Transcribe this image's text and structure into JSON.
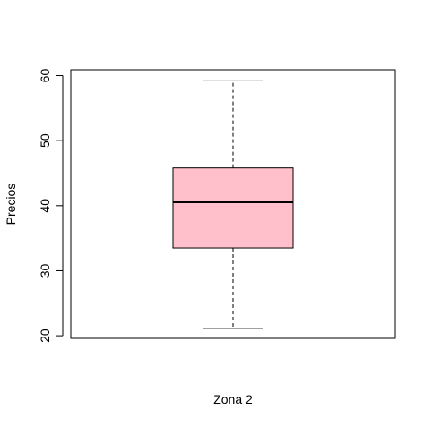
{
  "chart_data": {
    "type": "box",
    "categories": [
      "Zona 2"
    ],
    "series": [
      {
        "values": {
          "min": 21.1,
          "q1": 33.5,
          "median": 40.6,
          "q3": 45.8,
          "max": 59.2
        }
      }
    ],
    "xlabel": "Zona 2",
    "ylabel": "Precios",
    "ylim": [
      19.6,
      60.9
    ],
    "yticks": [
      "20",
      "30",
      "40",
      "50",
      "60"
    ],
    "grid": false,
    "colors": {
      "box_fill": "#FFC0CB",
      "stroke": "#000000"
    }
  }
}
